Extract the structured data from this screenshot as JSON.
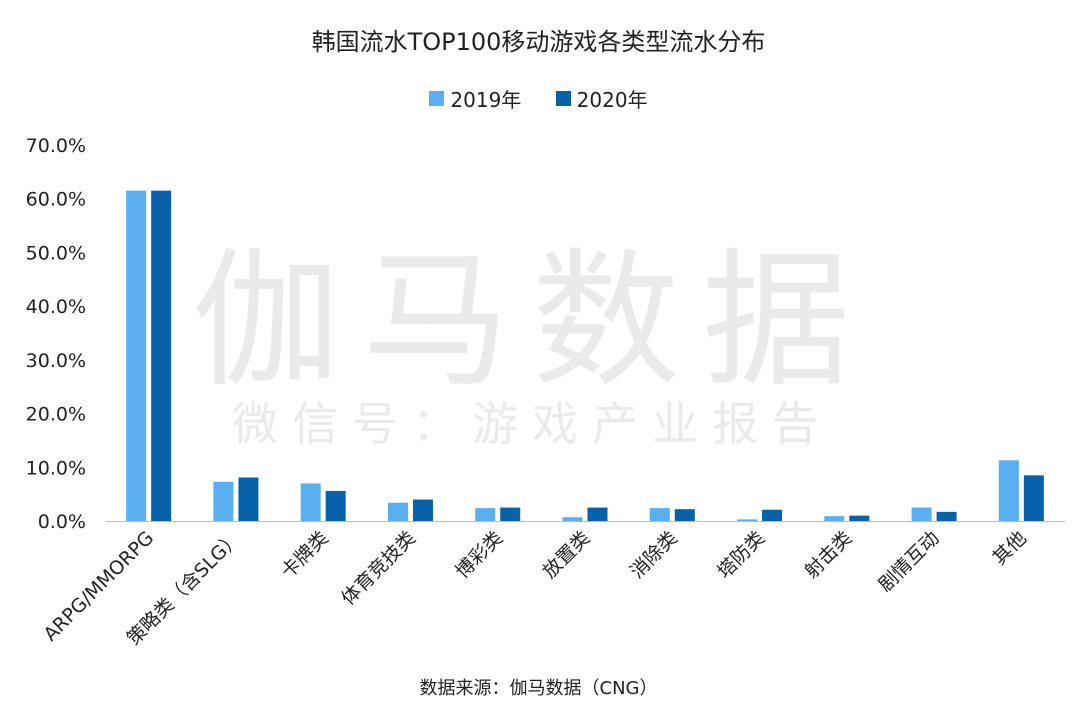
{
  "chart_data": {
    "type": "bar",
    "title": "韩国流水TOP100移动游戏各类型流水分布",
    "categories": [
      "ARPG/MMORPG",
      "策略类（含SLG）",
      "卡牌类",
      "体育竞技类",
      "博彩类",
      "放置类",
      "消除类",
      "塔防类",
      "射击类",
      "剧情互动",
      "其他"
    ],
    "series": [
      {
        "name": "2019年",
        "color": "#5aaff0",
        "values": [
          61.5,
          7.3,
          7.0,
          3.4,
          2.4,
          0.7,
          2.4,
          0.3,
          0.9,
          2.5,
          11.3
        ]
      },
      {
        "name": "2020年",
        "color": "#0862aa",
        "values": [
          61.5,
          8.1,
          5.6,
          4.0,
          2.5,
          2.5,
          2.2,
          2.1,
          1.0,
          1.7,
          8.5
        ]
      }
    ],
    "ylim": [
      0,
      70
    ],
    "yticks": [
      0,
      10,
      20,
      30,
      40,
      50,
      60,
      70
    ],
    "ytick_labels": [
      "0.0%",
      "10.0%",
      "20.0%",
      "30.0%",
      "40.0%",
      "50.0%",
      "60.0%",
      "70.0%"
    ],
    "legend_position": "top-center",
    "grid": false
  },
  "watermark": {
    "main": "伽马数据",
    "sub": "微信号：游戏产业报告"
  },
  "source_note": "数据来源：伽马数据（CNG）"
}
